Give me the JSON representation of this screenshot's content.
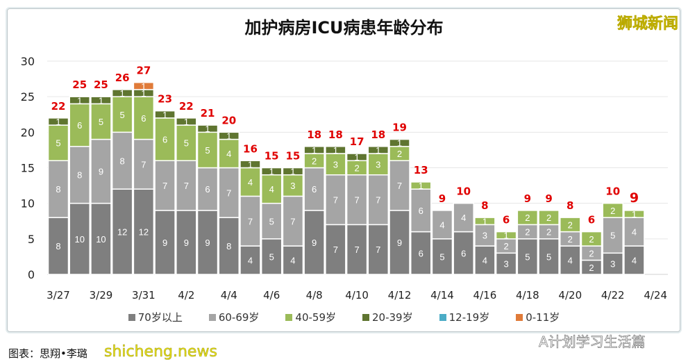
{
  "chart_data": {
    "type": "bar",
    "stacked": true,
    "title": "加护病房ICU病患年龄分布",
    "categories": [
      "3/27",
      "3/28",
      "3/29",
      "3/30",
      "3/31",
      "4/1",
      "4/2",
      "4/3",
      "4/4",
      "4/5",
      "4/6",
      "4/7",
      "4/8",
      "4/9",
      "4/10",
      "4/11",
      "4/12",
      "4/13",
      "4/14",
      "4/15",
      "4/16",
      "4/17",
      "4/18",
      "4/19",
      "4/20",
      "4/21",
      "4/22",
      "4/23",
      "4/24"
    ],
    "xtick_labels": [
      "3/27",
      "3/29",
      "3/31",
      "4/2",
      "4/4",
      "4/6",
      "4/8",
      "4/10",
      "4/12",
      "4/14",
      "4/16",
      "4/18",
      "4/20",
      "4/22",
      "4/24"
    ],
    "series": [
      {
        "name": "70岁以上",
        "color": "#7f7f7f",
        "values": [
          8,
          10,
          10,
          12,
          12,
          9,
          9,
          9,
          8,
          4,
          5,
          4,
          9,
          7,
          7,
          7,
          9,
          6,
          5,
          6,
          4,
          3,
          5,
          5,
          4,
          2,
          3,
          4,
          null
        ]
      },
      {
        "name": "60-69岁",
        "color": "#a5a5a5",
        "values": [
          8,
          8,
          9,
          8,
          7,
          7,
          7,
          6,
          7,
          7,
          5,
          7,
          6,
          7,
          7,
          7,
          7,
          6,
          4,
          4,
          3,
          2,
          2,
          2,
          2,
          2,
          5,
          4,
          null
        ]
      },
      {
        "name": "40-59岁",
        "color": "#9bbb59",
        "values": [
          5,
          6,
          5,
          5,
          6,
          6,
          5,
          5,
          4,
          4,
          4,
          3,
          2,
          3,
          2,
          3,
          2,
          1,
          0,
          0,
          1,
          1,
          2,
          2,
          2,
          2,
          2,
          1,
          null
        ]
      },
      {
        "name": "20-39岁",
        "color": "#5f7530",
        "values": [
          1,
          1,
          1,
          1,
          1,
          1,
          1,
          1,
          1,
          1,
          1,
          1,
          1,
          1,
          1,
          1,
          1,
          0,
          0,
          0,
          0,
          0,
          0,
          0,
          0,
          0,
          0,
          0,
          null
        ]
      },
      {
        "name": "12-19岁",
        "color": "#4bacc6",
        "values": [
          0,
          0,
          0,
          0,
          0,
          0,
          0,
          0,
          0,
          0,
          0,
          0,
          0,
          0,
          0,
          0,
          0,
          0,
          0,
          0,
          0,
          0,
          0,
          0,
          0,
          0,
          0,
          0,
          null
        ]
      },
      {
        "name": "0-11岁",
        "color": "#e07b39",
        "values": [
          0,
          0,
          0,
          0,
          1,
          0,
          0,
          0,
          0,
          0,
          0,
          0,
          0,
          0,
          0,
          0,
          0,
          0,
          0,
          0,
          0,
          0,
          0,
          0,
          0,
          0,
          0,
          0,
          null
        ]
      }
    ],
    "totals": [
      22,
      25,
      25,
      26,
      27,
      23,
      22,
      21,
      20,
      16,
      15,
      15,
      18,
      18,
      17,
      18,
      19,
      13,
      9,
      10,
      8,
      6,
      9,
      9,
      8,
      6,
      10,
      9,
      null
    ],
    "ylim": [
      0,
      30
    ],
    "yticks": [
      0,
      5,
      10,
      15,
      20,
      25,
      30
    ],
    "grid": true,
    "legend": "bottom",
    "total_label_color": "#e00000"
  },
  "logo": "狮城新闻",
  "credit": "图表：思翔•李璐",
  "watermarks": [
    "shicheng.news",
    "A计划学习生活篇"
  ]
}
